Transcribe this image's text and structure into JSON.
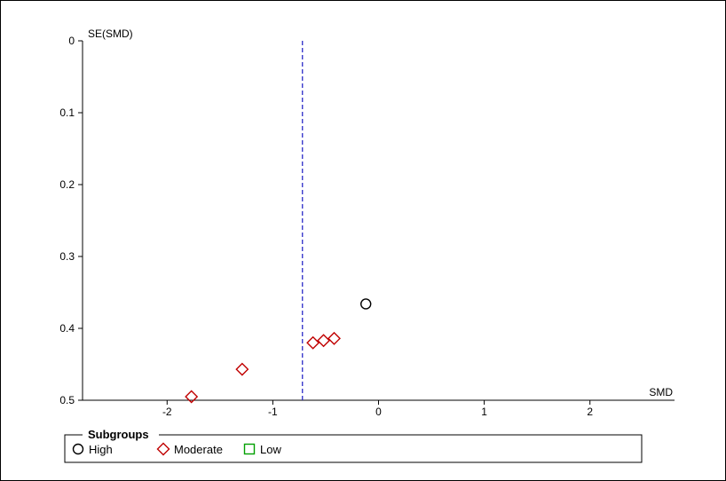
{
  "chart_data": {
    "type": "scatter",
    "title": "",
    "xlabel": "SMD",
    "ylabel": "SE(SMD)",
    "xlim": [
      -2.8,
      2.8
    ],
    "ylim": [
      0,
      0.5
    ],
    "y_reversed": true,
    "x_ticks": [
      {
        "value": -2,
        "label": "-2"
      },
      {
        "value": -1,
        "label": "-1"
      },
      {
        "value": 0,
        "label": "0"
      },
      {
        "value": 1,
        "label": "1"
      },
      {
        "value": 2,
        "label": "2"
      }
    ],
    "y_ticks": [
      {
        "value": 0,
        "label": "0"
      },
      {
        "value": 0.1,
        "label": "0.1"
      },
      {
        "value": 0.2,
        "label": "0.2"
      },
      {
        "value": 0.3,
        "label": "0.3"
      },
      {
        "value": 0.4,
        "label": "0.4"
      },
      {
        "value": 0.5,
        "label": "0.5"
      }
    ],
    "pooled_estimate_line": {
      "x": -0.72,
      "color": "#2b2bc8",
      "style": "dashed"
    },
    "legend": {
      "title": "Subgroups",
      "placement": "bottom-left"
    },
    "series": [
      {
        "name": "High",
        "marker": "circle",
        "color": "#000000",
        "points": [
          {
            "x": -0.12,
            "y": 0.366
          }
        ]
      },
      {
        "name": "Moderate",
        "marker": "diamond",
        "color": "#c00000",
        "points": [
          {
            "x": -1.77,
            "y": 0.495
          },
          {
            "x": -1.29,
            "y": 0.457
          },
          {
            "x": -0.62,
            "y": 0.42
          },
          {
            "x": -0.52,
            "y": 0.417
          },
          {
            "x": -0.42,
            "y": 0.414
          }
        ]
      },
      {
        "name": "Low",
        "marker": "square",
        "color": "#00a000",
        "points": []
      }
    ],
    "grid": false
  }
}
